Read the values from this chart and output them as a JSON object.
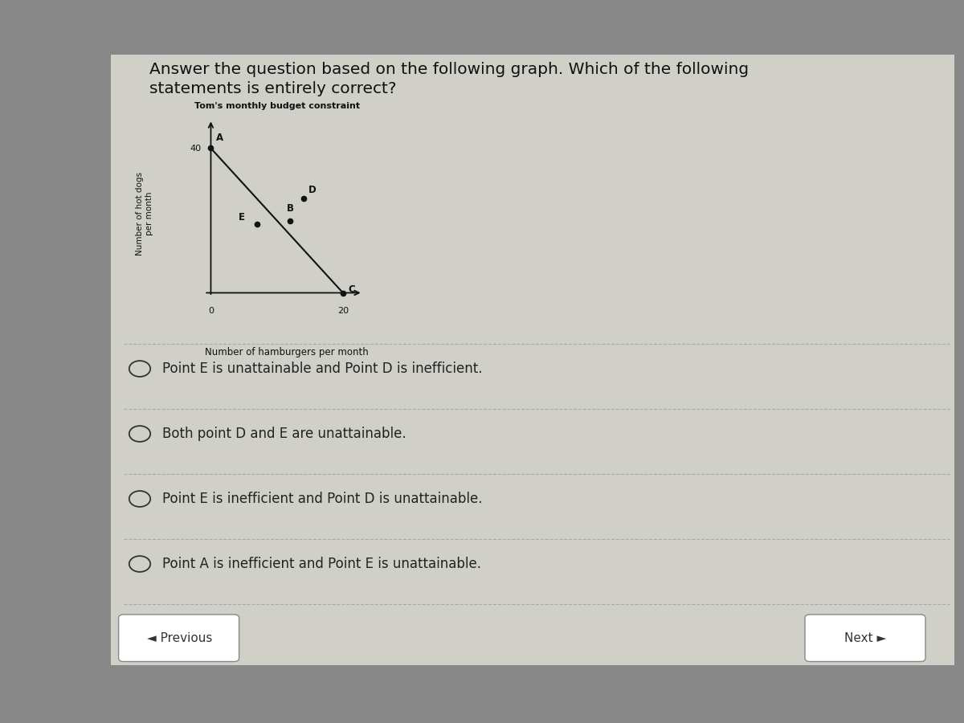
{
  "title_main_line1": "Answer the question based on the following graph. Which of the following",
  "title_main_line2": "statements is entirely correct?",
  "chart_title": "Tom's monthly budget constraint",
  "xlabel": "Number of hamburgers per month",
  "ylabel": "Number of hot dogs\nper month",
  "outer_bg": "#888888",
  "panel_bg": "#d0cfc8",
  "inner_panel_bg": "#d8d5cc",
  "point_A": [
    0,
    40
  ],
  "point_B": [
    12,
    20
  ],
  "point_C": [
    20,
    0
  ],
  "point_D": [
    14,
    26
  ],
  "point_E": [
    7,
    19
  ],
  "x_tick": 20,
  "y_tick": 40,
  "options": [
    "Point E is unattainable and Point D is inefficient.",
    "Both point D and E are unattainable.",
    "Point E is inefficient and Point D is unattainable.",
    "Point A is inefficient and Point E is unattainable."
  ],
  "nav_prev": "◄ Previous",
  "nav_next": "Next ►",
  "line_color": "#111111",
  "point_color": "#111111",
  "axis_color": "#111111",
  "text_color": "#111111",
  "option_text_color": "#222222",
  "divider_color": "#aaaaaa"
}
